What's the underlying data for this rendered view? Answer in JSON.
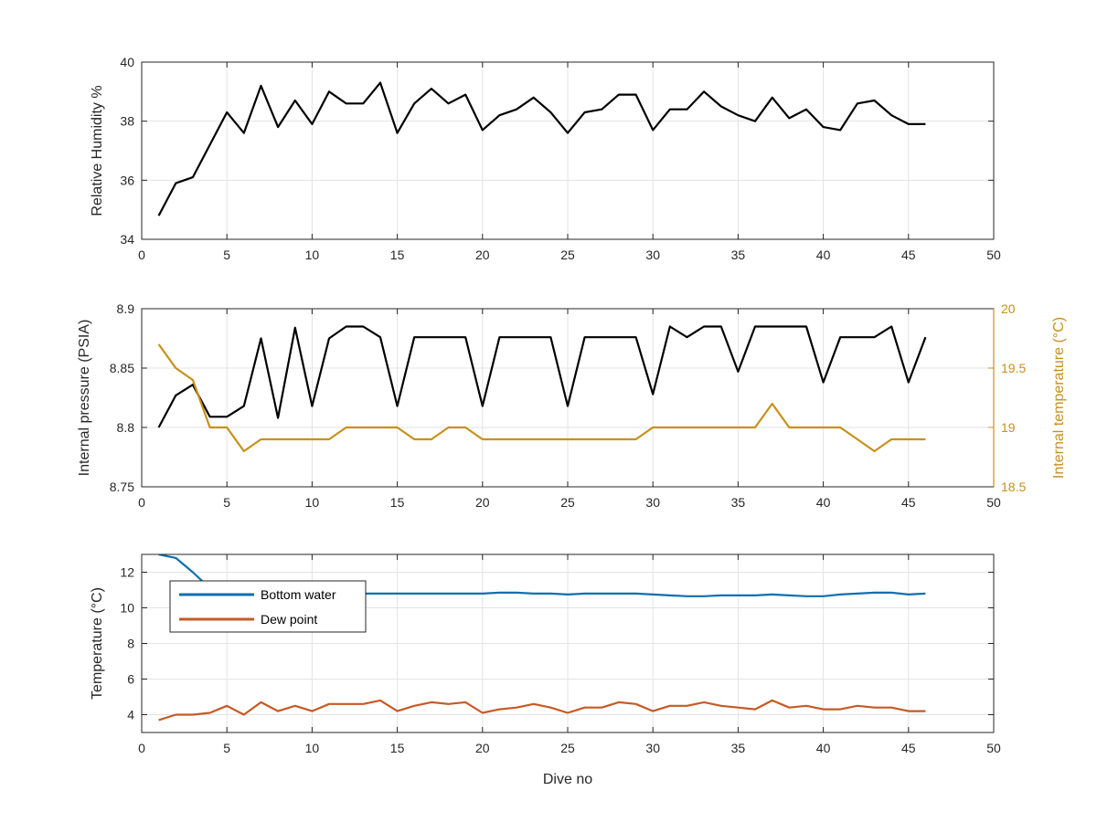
{
  "colors": {
    "black_series": "#000000",
    "internal_temp": "#c8901a",
    "bottom_water": "#0f6fb0",
    "dew_point": "#c65a25",
    "grid": "#e3e3e3",
    "axis": "#262626"
  },
  "chart_data": [
    {
      "type": "line",
      "xlabel": "",
      "ylabel": "Relative Humidity %",
      "xlim": [
        0,
        50
      ],
      "ylim": [
        34,
        40
      ],
      "xticks": [
        "0",
        "5",
        "10",
        "15",
        "20",
        "25",
        "30",
        "35",
        "40",
        "45",
        "50"
      ],
      "yticks": [
        "34",
        "36",
        "38",
        "40"
      ],
      "grid": true,
      "x": [
        1,
        2,
        3,
        4,
        5,
        6,
        7,
        8,
        9,
        10,
        11,
        12,
        13,
        14,
        15,
        16,
        17,
        18,
        19,
        20,
        21,
        22,
        23,
        24,
        25,
        26,
        27,
        28,
        29,
        30,
        31,
        32,
        33,
        34,
        35,
        36,
        37,
        38,
        39,
        40,
        41,
        42,
        43,
        44,
        45,
        46
      ],
      "series": [
        {
          "color": "#000000",
          "values": [
            34.8,
            35.9,
            36.1,
            37.2,
            38.3,
            37.6,
            39.2,
            37.8,
            38.7,
            37.9,
            39.0,
            38.6,
            38.6,
            39.3,
            37.6,
            38.6,
            39.1,
            38.6,
            38.9,
            37.7,
            38.2,
            38.4,
            38.8,
            38.3,
            37.6,
            38.3,
            38.4,
            38.9,
            38.9,
            37.7,
            38.4,
            38.4,
            39.0,
            38.5,
            38.2,
            38.0,
            38.8,
            38.1,
            38.4,
            37.8,
            37.7,
            38.6,
            38.7,
            38.2,
            37.9,
            37.9
          ]
        }
      ]
    },
    {
      "type": "line",
      "xlabel": "",
      "ylabel": "Internal pressure (PSIA)",
      "ylabel_right": "Internal temperature (°C)",
      "xlim": [
        0,
        50
      ],
      "ylim": [
        8.75,
        8.9
      ],
      "ylim_right": [
        18.5,
        20
      ],
      "xticks": [
        "0",
        "5",
        "10",
        "15",
        "20",
        "25",
        "30",
        "35",
        "40",
        "45",
        "50"
      ],
      "yticks": [
        "8.75",
        "8.8",
        "8.85",
        "8.9"
      ],
      "yticks_right": [
        "18.5",
        "19",
        "19.5",
        "20"
      ],
      "grid": true,
      "x": [
        1,
        2,
        3,
        4,
        5,
        6,
        7,
        8,
        9,
        10,
        11,
        12,
        13,
        14,
        15,
        16,
        17,
        18,
        19,
        20,
        21,
        22,
        23,
        24,
        25,
        26,
        27,
        28,
        29,
        30,
        31,
        32,
        33,
        34,
        35,
        36,
        37,
        38,
        39,
        40,
        41,
        42,
        43,
        44,
        45,
        46
      ],
      "series": [
        {
          "axis": "left",
          "color": "#000000",
          "values": [
            8.8,
            8.827,
            8.836,
            8.809,
            8.809,
            8.818,
            8.875,
            8.808,
            8.884,
            8.818,
            8.875,
            8.885,
            8.885,
            8.876,
            8.818,
            8.876,
            8.876,
            8.876,
            8.876,
            8.818,
            8.876,
            8.876,
            8.876,
            8.876,
            8.818,
            8.876,
            8.876,
            8.876,
            8.876,
            8.828,
            8.885,
            8.876,
            8.885,
            8.885,
            8.847,
            8.885,
            8.885,
            8.885,
            8.885,
            8.838,
            8.876,
            8.876,
            8.876,
            8.885,
            8.838,
            8.876
          ]
        },
        {
          "axis": "right",
          "color": "#c8901a",
          "values": [
            19.7,
            19.5,
            19.4,
            19.0,
            19.0,
            18.8,
            18.9,
            18.9,
            18.9,
            18.9,
            18.9,
            19.0,
            19.0,
            19.0,
            19.0,
            18.9,
            18.9,
            19.0,
            19.0,
            18.9,
            18.9,
            18.9,
            18.9,
            18.9,
            18.9,
            18.9,
            18.9,
            18.9,
            18.9,
            19.0,
            19.0,
            19.0,
            19.0,
            19.0,
            19.0,
            19.0,
            19.2,
            19.0,
            19.0,
            19.0,
            19.0,
            18.9,
            18.8,
            18.9,
            18.9,
            18.9
          ]
        }
      ]
    },
    {
      "type": "line",
      "xlabel": "Dive no",
      "ylabel": "Temperature (°C)",
      "xlim": [
        0,
        50
      ],
      "ylim": [
        3,
        13
      ],
      "xticks": [
        "0",
        "5",
        "10",
        "15",
        "20",
        "25",
        "30",
        "35",
        "40",
        "45",
        "50"
      ],
      "yticks": [
        "4",
        "6",
        "8",
        "10",
        "12"
      ],
      "grid": true,
      "legend": "top-left",
      "x": [
        1,
        2,
        3,
        4,
        5,
        6,
        7,
        8,
        9,
        10,
        11,
        12,
        13,
        14,
        15,
        16,
        17,
        18,
        19,
        20,
        21,
        22,
        23,
        24,
        25,
        26,
        27,
        28,
        29,
        30,
        31,
        32,
        33,
        34,
        35,
        36,
        37,
        38,
        39,
        40,
        41,
        42,
        43,
        44,
        45,
        46
      ],
      "series": [
        {
          "name": "Bottom water",
          "color": "#0f6fb0",
          "values": [
            13.0,
            12.8,
            12.0,
            11.1,
            10.9,
            10.8,
            10.8,
            10.8,
            10.8,
            10.8,
            10.8,
            10.8,
            10.8,
            10.8,
            10.8,
            10.8,
            10.8,
            10.8,
            10.8,
            10.8,
            10.85,
            10.85,
            10.8,
            10.8,
            10.75,
            10.8,
            10.8,
            10.8,
            10.8,
            10.75,
            10.7,
            10.65,
            10.65,
            10.7,
            10.7,
            10.7,
            10.75,
            10.7,
            10.65,
            10.65,
            10.75,
            10.8,
            10.85,
            10.85,
            10.75,
            10.8
          ]
        },
        {
          "name": "Dew point",
          "color": "#c65a25",
          "values": [
            3.7,
            4.0,
            4.0,
            4.1,
            4.5,
            4.0,
            4.7,
            4.2,
            4.5,
            4.2,
            4.6,
            4.6,
            4.6,
            4.8,
            4.2,
            4.5,
            4.7,
            4.6,
            4.7,
            4.1,
            4.3,
            4.4,
            4.6,
            4.4,
            4.1,
            4.4,
            4.4,
            4.7,
            4.6,
            4.2,
            4.5,
            4.5,
            4.7,
            4.5,
            4.4,
            4.3,
            4.8,
            4.4,
            4.5,
            4.3,
            4.3,
            4.5,
            4.4,
            4.4,
            4.2,
            4.2
          ]
        }
      ]
    }
  ]
}
